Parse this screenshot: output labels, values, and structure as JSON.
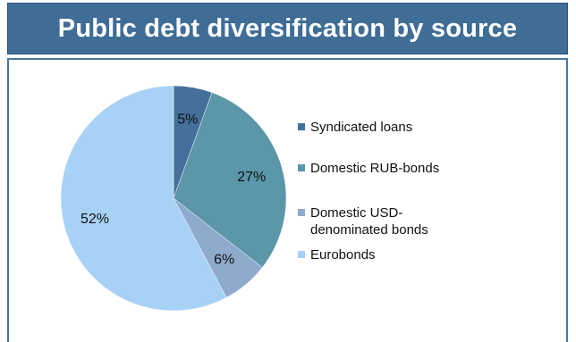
{
  "header": {
    "title": "Public debt diversification by source"
  },
  "chart_data": {
    "type": "pie",
    "title": "Public debt diversification by source",
    "slices": [
      {
        "label": "Syndicated loans",
        "value": 5,
        "display": "5%",
        "color": "#44709b"
      },
      {
        "label": "Domestic RUB-bonds",
        "value": 27,
        "display": "27%",
        "color": "#5b96a9"
      },
      {
        "label": "Domestic USD-denominated bonds",
        "value": 6,
        "display": "6%",
        "color": "#8eaacc"
      },
      {
        "label": "Eurobonds",
        "value": 52,
        "display": "52%",
        "color": "#a8d1f6"
      }
    ],
    "legend_position": "right",
    "legend": [
      {
        "lines": [
          "Syndicated loans"
        ],
        "color": "#44709b"
      },
      {
        "lines": [
          "Domestic RUB-bonds"
        ],
        "color": "#5b96a9"
      },
      {
        "lines": [
          "Domestic USD-",
          "denominated bonds"
        ],
        "color": "#8eaacc"
      },
      {
        "lines": [
          "Eurobonds"
        ],
        "color": "#a8d1f6"
      }
    ]
  }
}
